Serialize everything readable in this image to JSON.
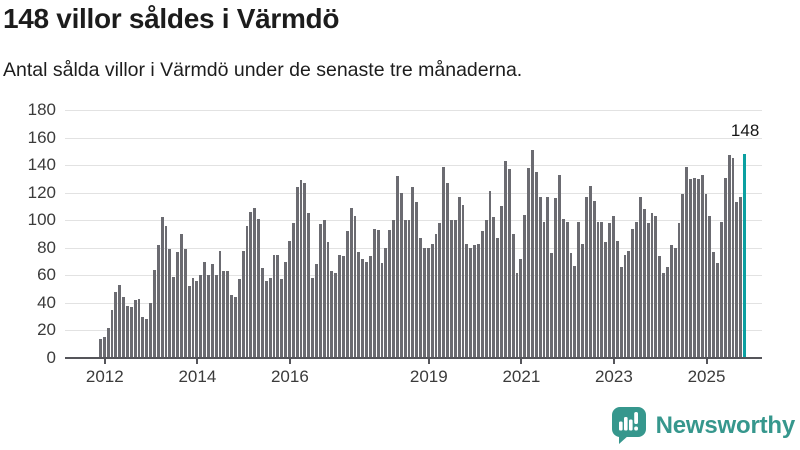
{
  "header": {
    "title": "148 villor såldes i Värmdö",
    "subtitle": "Antal sålda villor i Värmdö under de senaste tre månaderna."
  },
  "chart_data": {
    "type": "bar",
    "title": "148 villor såldes i Värmdö",
    "subtitle": "Antal sålda villor i Värmdö under de senaste tre månaderna.",
    "ylim": [
      0,
      180
    ],
    "y_ticks": [
      0,
      20,
      40,
      60,
      80,
      100,
      120,
      140,
      160,
      180
    ],
    "grid": true,
    "x_ticks": [
      {
        "label": "2012",
        "index": 1
      },
      {
        "label": "2014",
        "index": 25
      },
      {
        "label": "2016",
        "index": 49
      },
      {
        "label": "2019",
        "index": 85
      },
      {
        "label": "2021",
        "index": 109
      },
      {
        "label": "2023",
        "index": 133
      },
      {
        "label": "2025",
        "index": 157
      }
    ],
    "values": [
      14,
      15,
      22,
      35,
      48,
      53,
      44,
      38,
      37,
      42,
      43,
      30,
      28,
      40,
      64,
      82,
      102,
      96,
      79,
      59,
      77,
      90,
      79,
      52,
      58,
      56,
      60,
      70,
      60,
      68,
      60,
      78,
      63,
      63,
      46,
      44,
      57,
      78,
      96,
      106,
      109,
      101,
      65,
      56,
      58,
      75,
      75,
      57,
      70,
      85,
      98,
      124,
      129,
      127,
      105,
      58,
      68,
      97,
      100,
      84,
      63,
      62,
      75,
      74,
      92,
      109,
      103,
      77,
      72,
      70,
      74,
      94,
      93,
      69,
      80,
      93,
      100,
      132,
      120,
      100,
      100,
      124,
      113,
      87,
      80,
      80,
      83,
      90,
      98,
      139,
      127,
      100,
      100,
      117,
      111,
      83,
      80,
      82,
      83,
      92,
      100,
      121,
      102,
      87,
      110,
      143,
      137,
      90,
      62,
      72,
      104,
      138,
      151,
      135,
      117,
      99,
      117,
      76,
      116,
      133,
      101,
      99,
      76,
      67,
      99,
      83,
      117,
      125,
      114,
      99,
      99,
      84,
      98,
      103,
      85,
      66,
      75,
      78,
      94,
      99,
      117,
      108,
      98,
      105,
      103,
      74,
      62,
      66,
      82,
      80,
      98,
      119,
      139,
      130,
      131,
      130,
      133,
      119,
      103,
      77,
      69,
      99,
      131,
      147,
      145,
      113,
      117,
      148
    ],
    "highlight": {
      "index": 167,
      "value": 148,
      "label": "148"
    }
  },
  "branding": {
    "logo_text": "Newsworthy"
  },
  "colors": {
    "bar_gray": "#6b6b71",
    "bar_highlight": "#0ba0a1",
    "gridline": "#e2e2e2",
    "axis": "#55555a",
    "logo_teal": "#36978d"
  }
}
